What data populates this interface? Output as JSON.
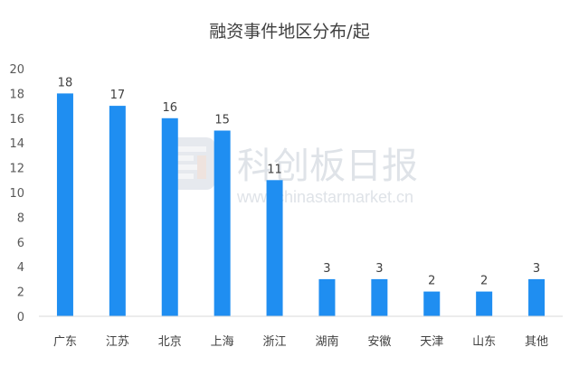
{
  "chart_data": {
    "type": "bar",
    "title": "融资事件地区分布/起",
    "categories": [
      "广东",
      "江苏",
      "北京",
      "上海",
      "浙江",
      "湖南",
      "安徽",
      "天津",
      "山东",
      "其他"
    ],
    "values": [
      18,
      17,
      16,
      15,
      11,
      3,
      3,
      2,
      2,
      3
    ],
    "yticks": [
      0,
      2,
      4,
      6,
      8,
      10,
      12,
      14,
      16,
      18,
      20
    ],
    "ylim": [
      0,
      20
    ],
    "xlabel": "",
    "ylabel": "",
    "grid": false,
    "legend": "none",
    "bar_color": "#1f8ef1",
    "axis_color": "#d9d9d9"
  },
  "watermark": {
    "name": "科创板日报",
    "url": "www.chinastarmarket.cn"
  }
}
